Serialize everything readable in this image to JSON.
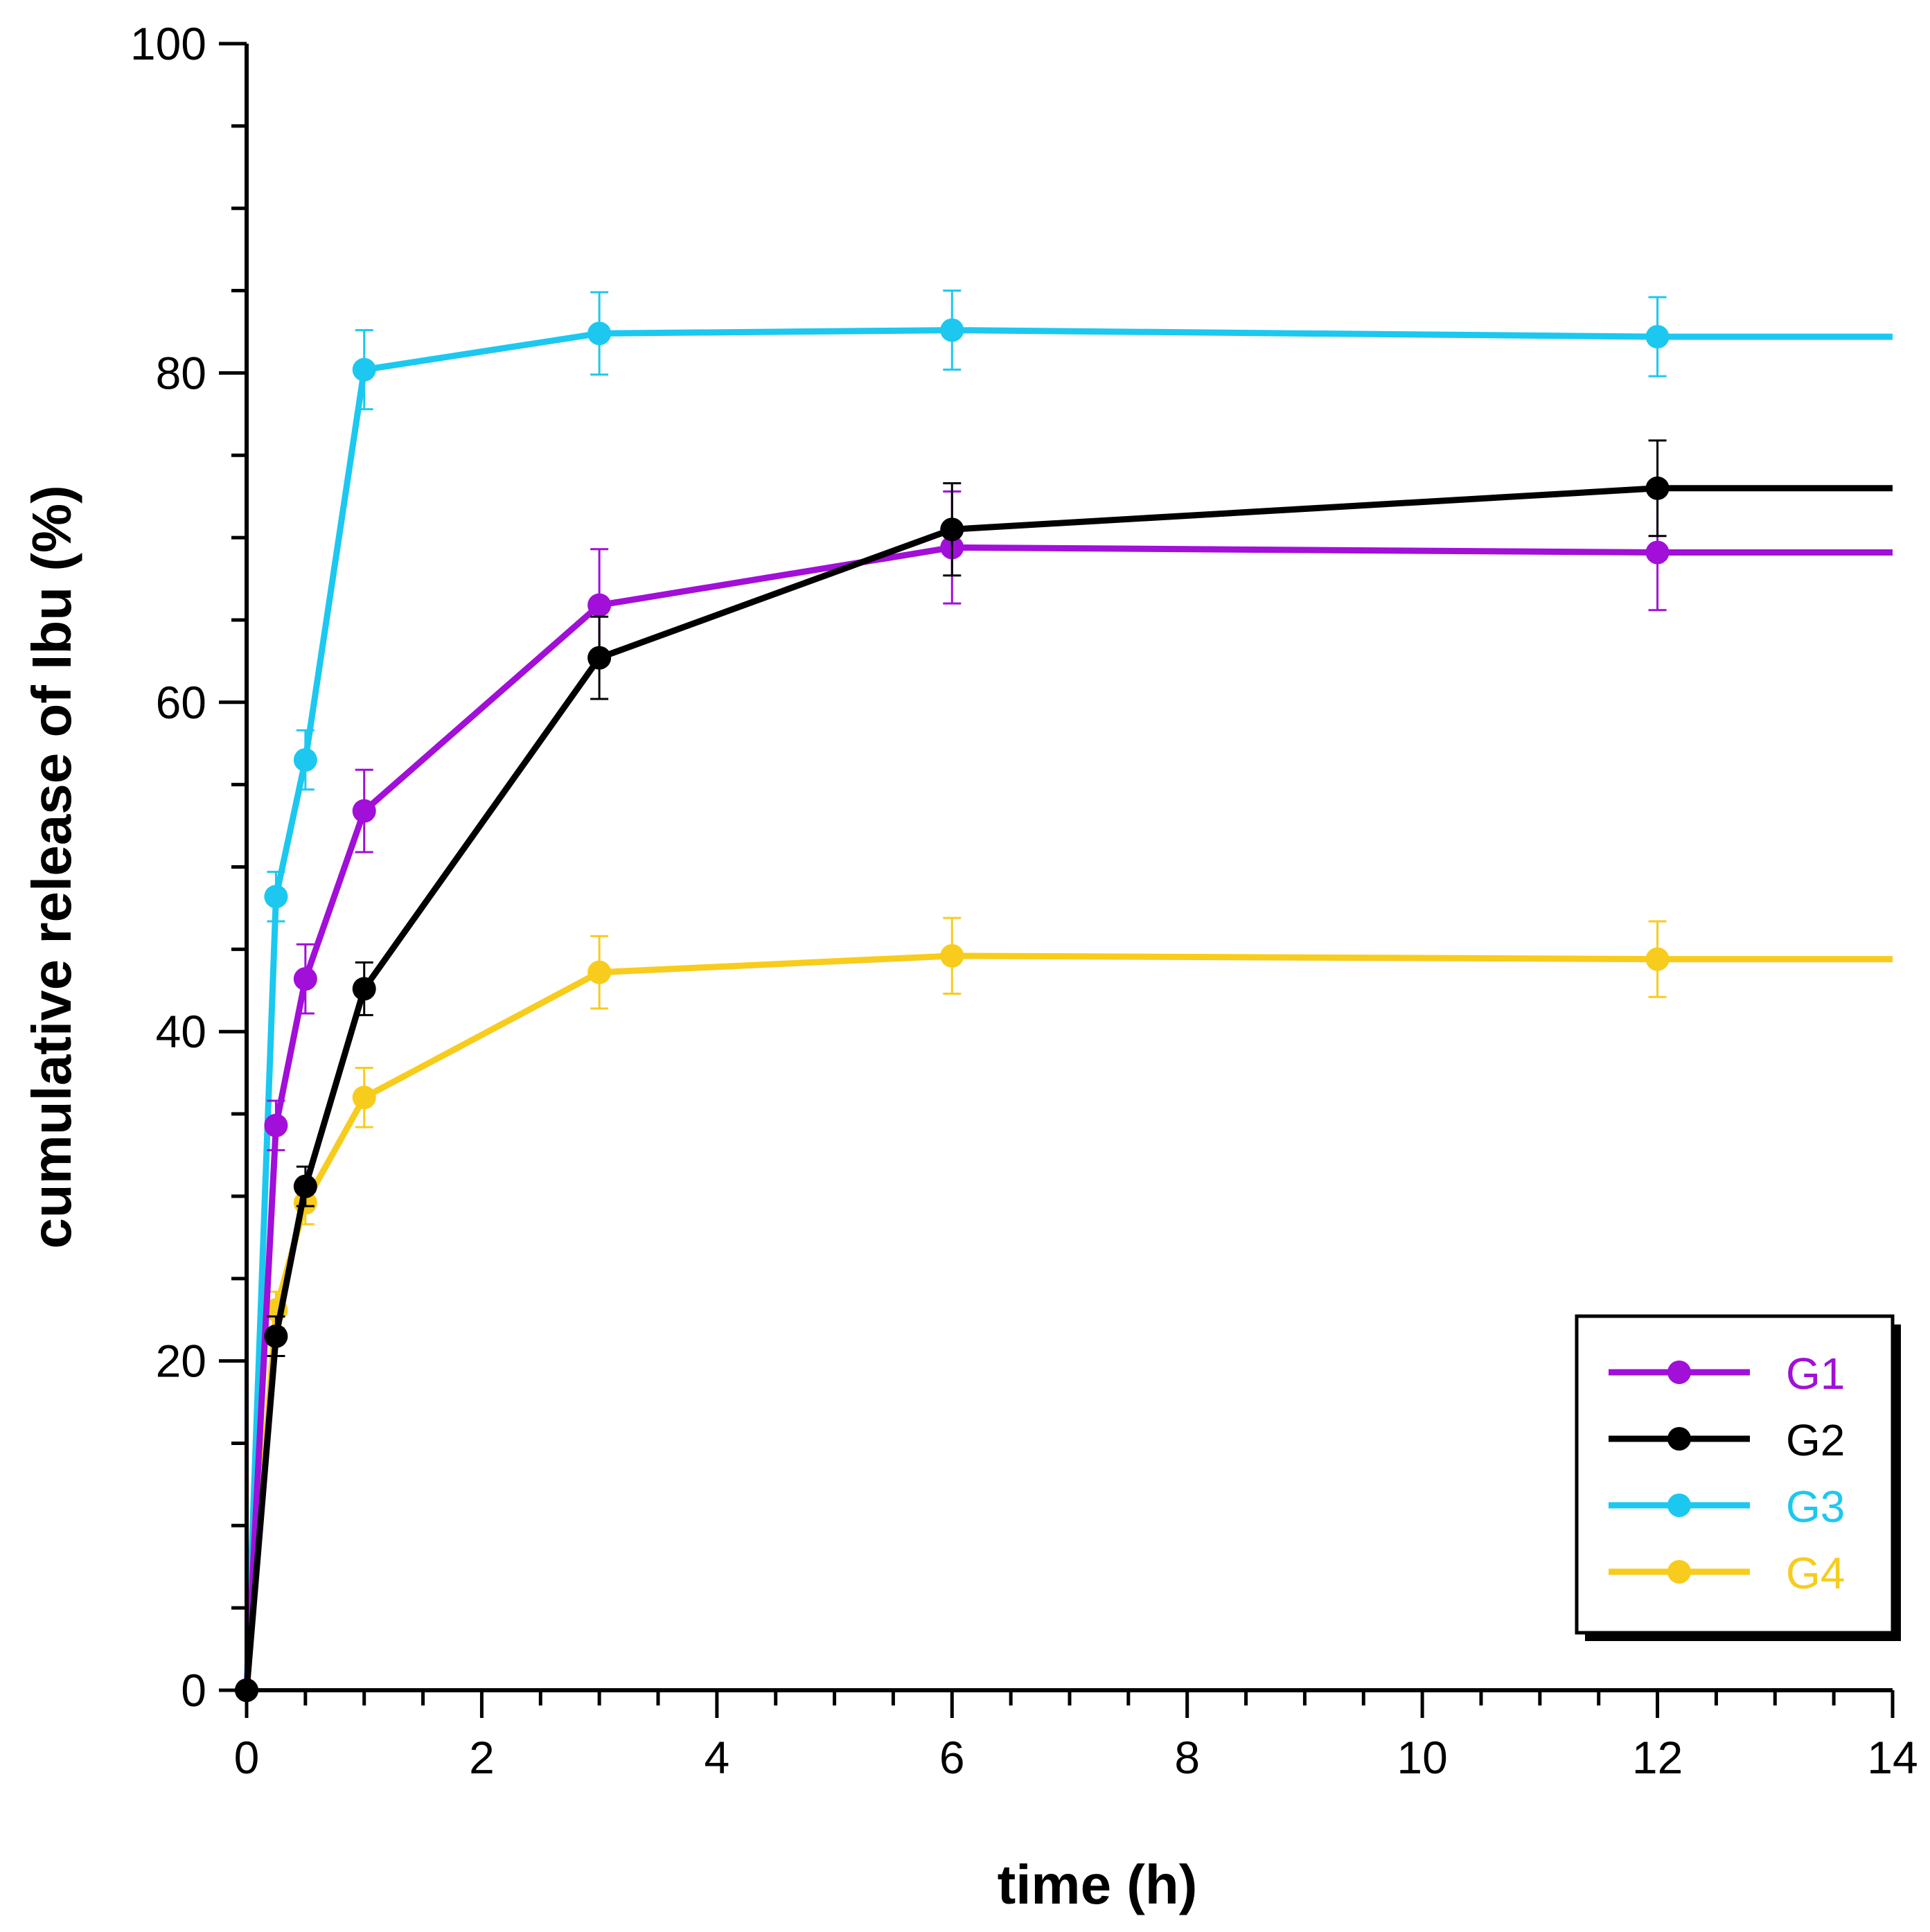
{
  "chart_data": {
    "type": "line",
    "title": "",
    "xlabel": "time (h)",
    "ylabel": "cumulative release of Ibu (%)",
    "xlim": [
      0,
      14
    ],
    "ylim": [
      0,
      100
    ],
    "xticks": [
      0,
      2,
      4,
      6,
      8,
      10,
      12,
      14
    ],
    "yticks": [
      0,
      20,
      40,
      60,
      80,
      100
    ],
    "x": [
      0,
      0.25,
      0.5,
      1,
      3,
      6,
      12
    ],
    "series": [
      {
        "name": "G1",
        "color": "#a10fd8",
        "values": [
          0,
          34.3,
          43.2,
          53.4,
          65.9,
          69.4,
          69.1
        ],
        "errors": [
          0,
          1.5,
          2.1,
          2.5,
          3.4,
          3.4,
          3.5
        ],
        "tail_to": 14
      },
      {
        "name": "G2",
        "color": "#000000",
        "values": [
          0,
          21.5,
          30.6,
          42.6,
          62.7,
          70.5,
          73.0
        ],
        "errors": [
          0,
          1.2,
          1.2,
          1.6,
          2.5,
          2.8,
          2.9
        ],
        "tail_to": 14
      },
      {
        "name": "G3",
        "color": "#1cc8ef",
        "values": [
          0,
          48.2,
          56.5,
          80.2,
          82.4,
          82.6,
          82.2
        ],
        "errors": [
          0,
          1.5,
          1.8,
          2.4,
          2.5,
          2.4,
          2.4
        ],
        "tail_to": 14
      },
      {
        "name": "G4",
        "color": "#f7cc1c",
        "values": [
          0,
          23.1,
          29.6,
          36.0,
          43.6,
          44.6,
          44.4
        ],
        "errors": [
          0,
          1.1,
          1.3,
          1.8,
          2.2,
          2.3,
          2.3
        ],
        "tail_to": 14
      }
    ],
    "legend": {
      "position": "bottom-right",
      "entries": [
        "G1",
        "G2",
        "G3",
        "G4"
      ]
    }
  }
}
